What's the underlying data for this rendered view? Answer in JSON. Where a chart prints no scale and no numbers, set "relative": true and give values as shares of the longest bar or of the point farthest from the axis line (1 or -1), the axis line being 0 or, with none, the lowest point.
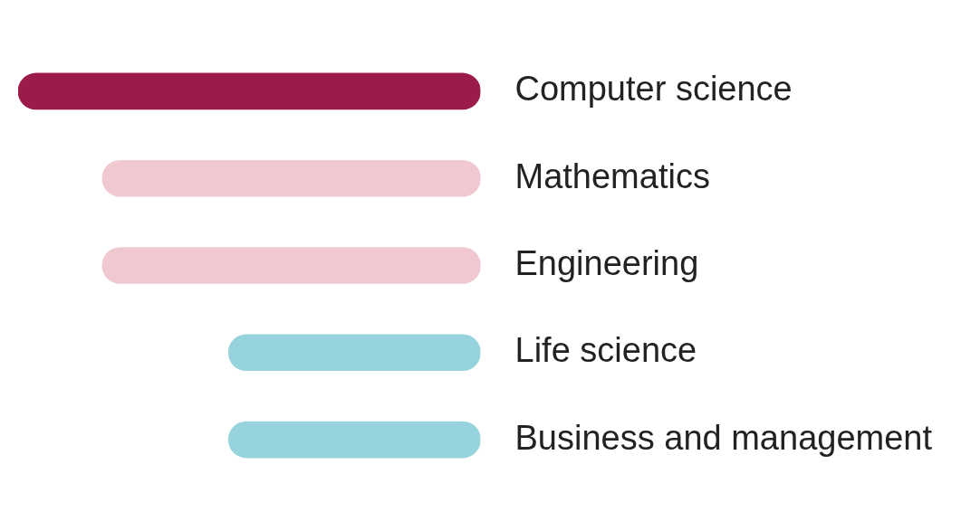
{
  "chart_data": {
    "type": "bar",
    "orientation": "horizontal",
    "relative": true,
    "categories": [
      "Computer science",
      "Mathematics",
      "Engineering",
      "Life science",
      "Business and management"
    ],
    "values": [
      1,
      0.818,
      0.818,
      0.545,
      0.545
    ],
    "colors": [
      "#9b1b4a",
      "#f0c8cf",
      "#f0c8cf",
      "#96d3dc",
      "#96d3dc"
    ]
  }
}
